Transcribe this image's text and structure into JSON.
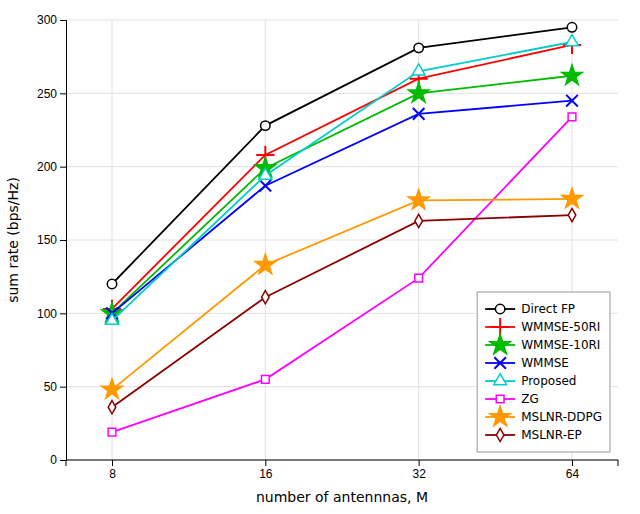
{
  "chart_data": {
    "type": "line",
    "xlabel": "number of antennnas, M",
    "ylabel": "sum rate (bps/Hz)",
    "categories": [
      "8",
      "16",
      "32",
      "64"
    ],
    "series": [
      {
        "name": "Direct FP",
        "color": "#000000",
        "marker": "circle",
        "values": [
          120,
          228,
          281,
          295
        ]
      },
      {
        "name": "WMMSE-50RI",
        "color": "#ff0000",
        "marker": "plus",
        "values": [
          103,
          208,
          260,
          283
        ]
      },
      {
        "name": "WMMSE-10RI",
        "color": "#00bb00",
        "marker": "star",
        "values": [
          100,
          199,
          250,
          262
        ]
      },
      {
        "name": "WMMSE",
        "color": "#0000ff",
        "marker": "x",
        "values": [
          100,
          187,
          236,
          245
        ]
      },
      {
        "name": "Proposed",
        "color": "#00cccc",
        "marker": "triangle",
        "values": [
          95,
          194,
          265,
          285
        ]
      },
      {
        "name": "ZG",
        "color": "#ff00ff",
        "marker": "square",
        "values": [
          19,
          55,
          124,
          234
        ]
      },
      {
        "name": "MSLNR-DDPG",
        "color": "#ff9900",
        "marker": "star",
        "values": [
          48,
          133,
          177,
          178
        ]
      },
      {
        "name": "MSLNR-EP",
        "color": "#8b0000",
        "marker": "diamond",
        "values": [
          36,
          111,
          163,
          167
        ]
      }
    ],
    "ylim": [
      0,
      300
    ],
    "yticks": [
      0,
      50,
      100,
      150,
      200,
      250,
      300
    ],
    "grid": true,
    "legend": "lower right"
  }
}
